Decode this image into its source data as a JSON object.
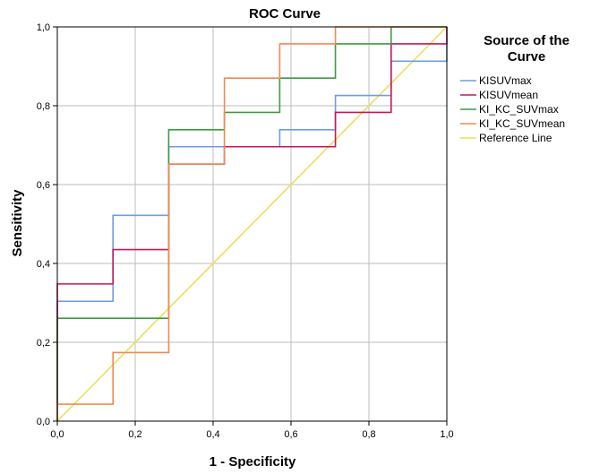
{
  "chart_data": {
    "type": "line",
    "title": "ROC Curve",
    "xlabel": "1 - Specificity",
    "ylabel": "Sensitivity",
    "xlim": [
      0,
      1
    ],
    "ylim": [
      0,
      1
    ],
    "x_ticks": [
      "0,0",
      "0,2",
      "0,4",
      "0,6",
      "0,8",
      "1,0"
    ],
    "y_ticks": [
      "0,0",
      "0,2",
      "0,4",
      "0,6",
      "0,8",
      "1,0"
    ],
    "grid": true,
    "legend": {
      "title": "Source of the Curve",
      "placement": "right"
    },
    "series": [
      {
        "name": "KISUVmax",
        "color": "#6d9de3",
        "points": [
          [
            0,
            0
          ],
          [
            0,
            0.304
          ],
          [
            0.143,
            0.304
          ],
          [
            0.143,
            0.522
          ],
          [
            0.286,
            0.522
          ],
          [
            0.286,
            0.696
          ],
          [
            0.429,
            0.696
          ],
          [
            0.571,
            0.696
          ],
          [
            0.571,
            0.739
          ],
          [
            0.714,
            0.739
          ],
          [
            0.714,
            0.826
          ],
          [
            0.857,
            0.826
          ],
          [
            0.857,
            0.913
          ],
          [
            1,
            0.913
          ],
          [
            1,
            1
          ]
        ]
      },
      {
        "name": "KISUVmean",
        "color": "#c2185b",
        "points": [
          [
            0,
            0
          ],
          [
            0,
            0.348
          ],
          [
            0.143,
            0.348
          ],
          [
            0.143,
            0.435
          ],
          [
            0.286,
            0.435
          ],
          [
            0.286,
            0.652
          ],
          [
            0.429,
            0.652
          ],
          [
            0.429,
            0.696
          ],
          [
            0.714,
            0.696
          ],
          [
            0.714,
            0.783
          ],
          [
            0.857,
            0.783
          ],
          [
            0.857,
            0.957
          ],
          [
            1,
            0.957
          ],
          [
            1,
            1
          ]
        ]
      },
      {
        "name": "KI_KC_SUVmax",
        "color": "#3f9b3f",
        "points": [
          [
            0,
            0
          ],
          [
            0,
            0.261
          ],
          [
            0.286,
            0.261
          ],
          [
            0.286,
            0.739
          ],
          [
            0.429,
            0.739
          ],
          [
            0.429,
            0.783
          ],
          [
            0.571,
            0.783
          ],
          [
            0.571,
            0.87
          ],
          [
            0.714,
            0.87
          ],
          [
            0.714,
            0.957
          ],
          [
            0.857,
            0.957
          ],
          [
            0.857,
            1
          ],
          [
            1,
            1
          ]
        ]
      },
      {
        "name": "KI_KC_SUVmean",
        "color": "#f28a50",
        "points": [
          [
            0,
            0
          ],
          [
            0,
            0.043
          ],
          [
            0.143,
            0.043
          ],
          [
            0.143,
            0.174
          ],
          [
            0.286,
            0.174
          ],
          [
            0.286,
            0.652
          ],
          [
            0.429,
            0.652
          ],
          [
            0.429,
            0.87
          ],
          [
            0.571,
            0.87
          ],
          [
            0.571,
            0.957
          ],
          [
            0.714,
            0.957
          ],
          [
            0.714,
            1
          ],
          [
            1,
            1
          ]
        ]
      },
      {
        "name": "Reference Line",
        "color": "#e8e05c",
        "points": [
          [
            0,
            0
          ],
          [
            1,
            1
          ]
        ]
      }
    ]
  }
}
